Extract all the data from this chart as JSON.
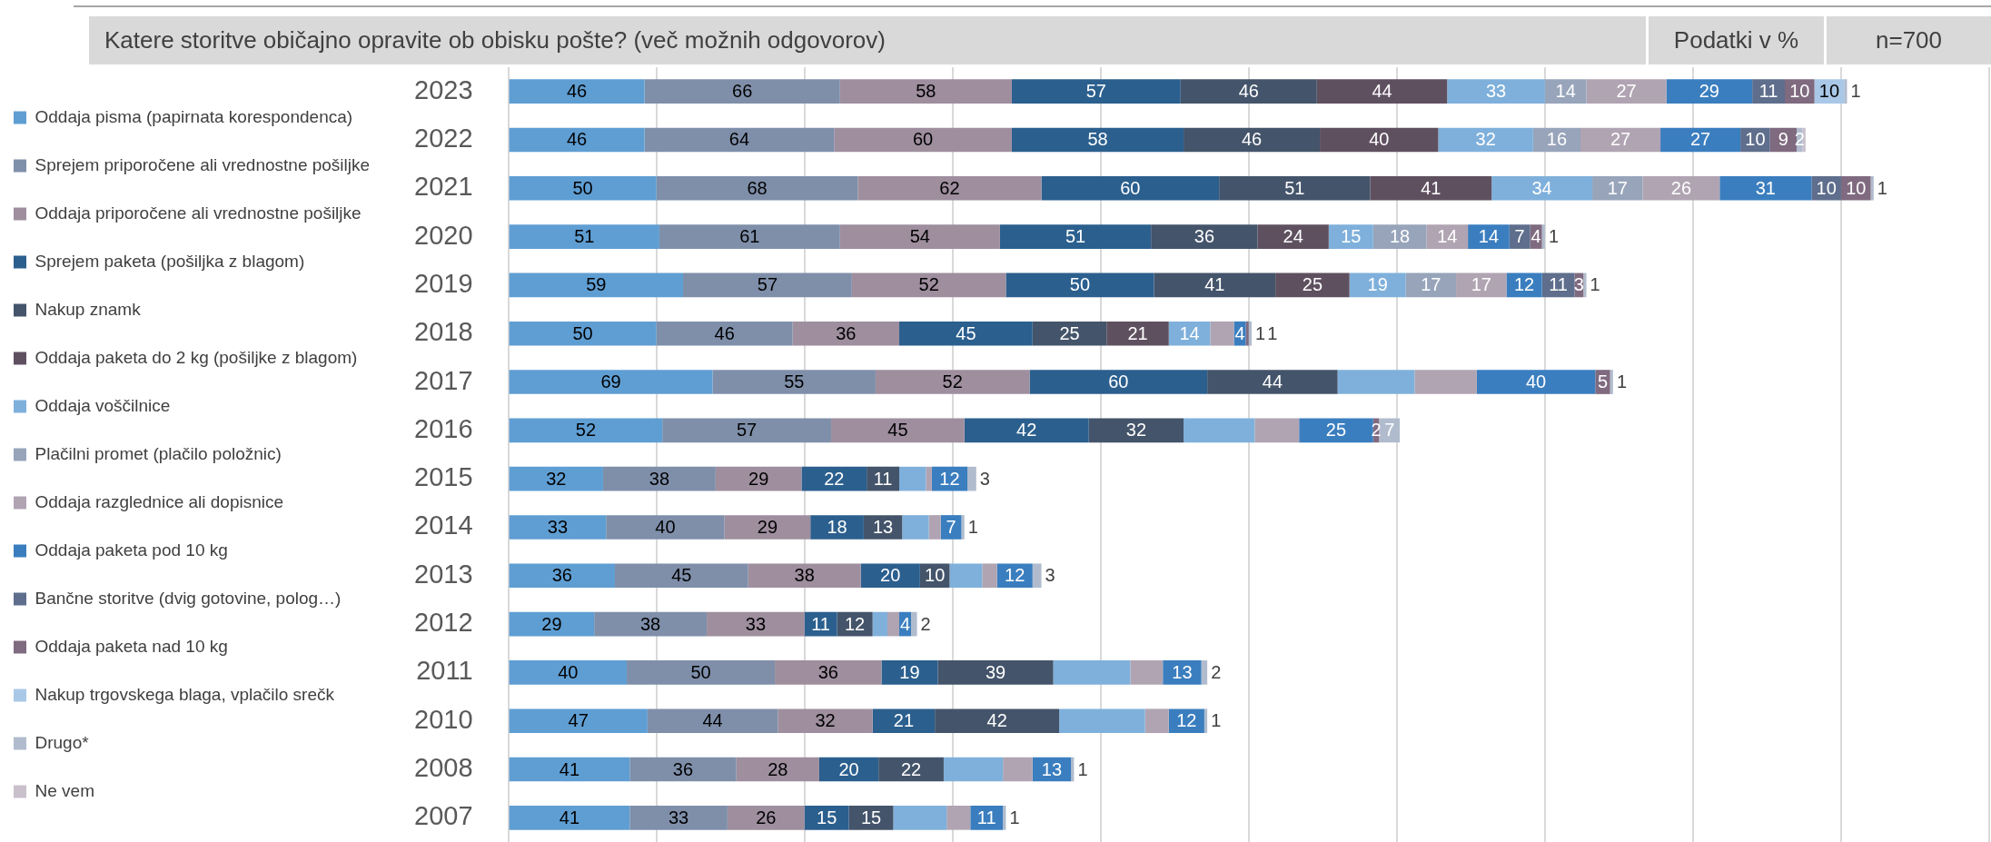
{
  "chart_data": {
    "type": "bar",
    "orientation": "horizontal",
    "stacked": true,
    "title": "Katere storitve običajno opravite ob obisku pošte? (več možnih odgovorov)",
    "annotations": [
      "Podatki v %",
      "n=700"
    ],
    "categories": [
      "2023",
      "2022",
      "2021",
      "2020",
      "2019",
      "2018",
      "2017",
      "2016",
      "2015",
      "2014",
      "2013",
      "2012",
      "2011",
      "2010",
      "2008",
      "2007"
    ],
    "xlim": [
      0,
      500
    ],
    "xticks": [
      {
        "value": 0,
        "label": null
      },
      {
        "value": 50,
        "label": null
      },
      {
        "value": 100,
        "label": null
      },
      {
        "value": 150,
        "label": null
      },
      {
        "value": 200,
        "label": null
      },
      {
        "value": 250,
        "label": null
      },
      {
        "value": 300,
        "label": null
      },
      {
        "value": 350,
        "label": null
      },
      {
        "value": 400,
        "label": null
      },
      {
        "value": 450,
        "label": null
      },
      {
        "value": 500,
        "label": null
      }
    ],
    "grid": "x",
    "legend": "left",
    "tick_labels": "y",
    "series": [
      {
        "name": "Oddaja pisma (papirnata korespondenca)",
        "color": "#5f9ed3",
        "values": [
          46,
          46,
          50,
          51,
          59,
          50,
          69,
          52,
          32,
          33,
          36,
          29,
          40,
          47,
          41,
          41
        ],
        "value_labels": [
          "46",
          "46",
          "50",
          "51",
          "59",
          "50",
          "69",
          "52",
          "32",
          "33",
          "36",
          "29",
          "40",
          "47",
          "41",
          "41"
        ]
      },
      {
        "name": "Sprejem priporočene ali vrednostne pošiljke",
        "color": "#7f8faa",
        "values": [
          66,
          64,
          68,
          61,
          57,
          46,
          55,
          57,
          38,
          40,
          45,
          38,
          50,
          44,
          36,
          33
        ],
        "value_labels": [
          "66",
          "64",
          "68",
          "61",
          "57",
          "46",
          "55",
          "57",
          "38",
          "40",
          "45",
          "38",
          "50",
          "44",
          "36",
          "33"
        ]
      },
      {
        "name": "Oddaja priporočene ali vrednostne pošiljke",
        "color": "#9e8e9e",
        "values": [
          58,
          60,
          62,
          54,
          52,
          36,
          52,
          45,
          29,
          29,
          38,
          33,
          36,
          32,
          28,
          26
        ],
        "value_labels": [
          "58",
          "60",
          "62",
          "54",
          "52",
          "36",
          "52",
          "45",
          "29",
          "29",
          "38",
          "33",
          "36",
          "32",
          "28",
          "26"
        ]
      },
      {
        "name": "Sprejem paketa (pošiljka z blagom)",
        "color": "#2b5f8e",
        "values": [
          57,
          58,
          60,
          51,
          50,
          45,
          60,
          42,
          22,
          18,
          20,
          11,
          19,
          21,
          20,
          15
        ],
        "value_labels": [
          "57",
          "58",
          "60",
          "51",
          "50",
          "45",
          "60",
          "42",
          "22",
          "18",
          "20",
          "11",
          "19",
          "21",
          "20",
          "15"
        ]
      },
      {
        "name": "Nakup znamk",
        "color": "#44546a",
        "values": [
          46,
          46,
          51,
          36,
          41,
          25,
          44,
          32,
          11,
          13,
          10,
          12,
          39,
          42,
          22,
          15
        ],
        "value_labels": [
          "46",
          "46",
          "51",
          "36",
          "41",
          "25",
          "44",
          "32",
          "11",
          "13",
          "10",
          "12",
          "39",
          "42",
          "22",
          "15"
        ]
      },
      {
        "name": "Oddaja paketa do 2 kg (pošiljke z blagom)",
        "color": "#5f5060",
        "values": [
          44,
          40,
          41,
          24,
          25,
          21,
          null,
          null,
          null,
          null,
          null,
          null,
          null,
          null,
          null,
          null
        ],
        "value_labels": [
          "44",
          "40",
          "41",
          "24",
          "25",
          "21",
          null,
          null,
          null,
          null,
          null,
          null,
          null,
          null,
          null,
          null
        ]
      },
      {
        "name": "Oddaja voščilnice",
        "color": "#7fb0db",
        "values": [
          33,
          32,
          34,
          15,
          19,
          14,
          26,
          24,
          9,
          9,
          11,
          5,
          26,
          29,
          20,
          18
        ],
        "value_labels": [
          "33",
          "32",
          "34",
          "15",
          "19",
          "14",
          null,
          null,
          null,
          null,
          null,
          null,
          null,
          null,
          null,
          null
        ]
      },
      {
        "name": "Plačilni promet (plačilo položnic)",
        "color": "#97a4ba",
        "values": [
          14,
          16,
          17,
          18,
          17,
          null,
          null,
          null,
          null,
          null,
          null,
          null,
          null,
          null,
          null,
          null
        ],
        "value_labels": [
          "14",
          "16",
          "17",
          "18",
          "17",
          null,
          null,
          null,
          null,
          null,
          null,
          null,
          null,
          null,
          null,
          null
        ]
      },
      {
        "name": "Oddaja razglednice ali dopisnice",
        "color": "#b0a4b2",
        "values": [
          27,
          27,
          26,
          14,
          17,
          8,
          21,
          15,
          2,
          4,
          5,
          4,
          11,
          8,
          10,
          8
        ],
        "value_labels": [
          "27",
          "27",
          "26",
          "14",
          "17",
          null,
          null,
          null,
          null,
          null,
          null,
          null,
          null,
          null,
          null,
          null
        ]
      },
      {
        "name": "Oddaja paketa pod 10 kg",
        "color": "#3a7ebf",
        "values": [
          29,
          27,
          31,
          14,
          12,
          4,
          40,
          25,
          12,
          7,
          12,
          4,
          13,
          12,
          13,
          11
        ],
        "value_labels": [
          "29",
          "27",
          "31",
          "14",
          "12",
          "4",
          "40",
          "25",
          "12",
          "7",
          "12",
          "4",
          "13",
          "12",
          "13",
          "11"
        ]
      },
      {
        "name": "Bančne storitve (dvig gotovine, polog…)",
        "color": "#5e6e8c",
        "values": [
          11,
          10,
          10,
          7,
          11,
          null,
          null,
          null,
          null,
          null,
          null,
          null,
          null,
          null,
          null,
          null
        ],
        "value_labels": [
          "11",
          "10",
          "10",
          "7",
          "11",
          null,
          null,
          null,
          null,
          null,
          null,
          null,
          null,
          null,
          null,
          null
        ]
      },
      {
        "name": "Oddaja paketa nad 10 kg",
        "color": "#7f6a80",
        "values": [
          10,
          9,
          10,
          4,
          3,
          1,
          5,
          2,
          null,
          null,
          null,
          null,
          null,
          null,
          null,
          null
        ],
        "value_labels": [
          "10",
          "9",
          "10",
          "4",
          "3",
          "1",
          "5",
          "2",
          null,
          null,
          null,
          null,
          null,
          null,
          null,
          null
        ]
      },
      {
        "name": "Nakup trgovskega blaga, vplačilo srečk",
        "color": "#a9c8e8",
        "values": [
          10,
          null,
          null,
          null,
          null,
          null,
          null,
          null,
          null,
          null,
          null,
          null,
          null,
          null,
          null,
          null
        ],
        "value_labels": [
          "10",
          null,
          null,
          null,
          null,
          null,
          null,
          null,
          null,
          null,
          null,
          null,
          null,
          null,
          null,
          null
        ]
      },
      {
        "name": "Drugo*",
        "color": "#b0bccd",
        "values": [
          1,
          2,
          1,
          1,
          1,
          1,
          1,
          7,
          3,
          1,
          3,
          2,
          2,
          1,
          1,
          1
        ],
        "value_labels": [
          "1",
          "2",
          "1",
          "1",
          "1",
          "1",
          "1",
          "7",
          "3",
          "1",
          "3",
          "2",
          "2",
          "1",
          "1",
          "1"
        ]
      },
      {
        "name": "Ne vem",
        "color": "#c9c0cc",
        "values": [
          null,
          1,
          null,
          null,
          null,
          null,
          null,
          null,
          null,
          null,
          null,
          null,
          null,
          null,
          null,
          null
        ],
        "value_labels": [
          null,
          null,
          null,
          null,
          null,
          null,
          null,
          null,
          null,
          null,
          null,
          null,
          null,
          null,
          null,
          null
        ]
      }
    ]
  }
}
